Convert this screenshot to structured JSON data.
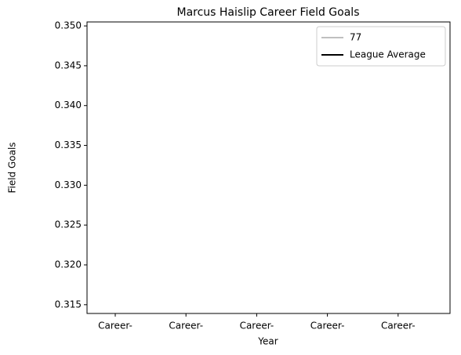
{
  "chart_data": {
    "type": "line",
    "title": "Marcus Haislip Career Field Goals",
    "x_label": "Year",
    "y_label": "Field Goals",
    "categories": [
      "Career-",
      "Career-",
      "Career-",
      "Career-",
      "Career-"
    ],
    "series": [
      {
        "name": "77",
        "color": "#bfbfbf",
        "values": [
          null,
          null,
          null,
          null,
          null
        ]
      },
      {
        "name": "League Average",
        "color": "#000000",
        "values": [
          null,
          null,
          null,
          null,
          null
        ]
      }
    ],
    "ylim": [
      0.3139,
      0.3505
    ],
    "yticks": [
      0.315,
      {
        "value": 0.32,
        "label": "0.320"
      },
      0.325,
      {
        "value": 0.33,
        "label": "0.330"
      },
      0.335,
      {
        "value": 0.34,
        "label": "0.340"
      },
      0.345,
      {
        "value": 0.35,
        "label": "0.350"
      }
    ],
    "legend": "upper right",
    "grid": false
  }
}
